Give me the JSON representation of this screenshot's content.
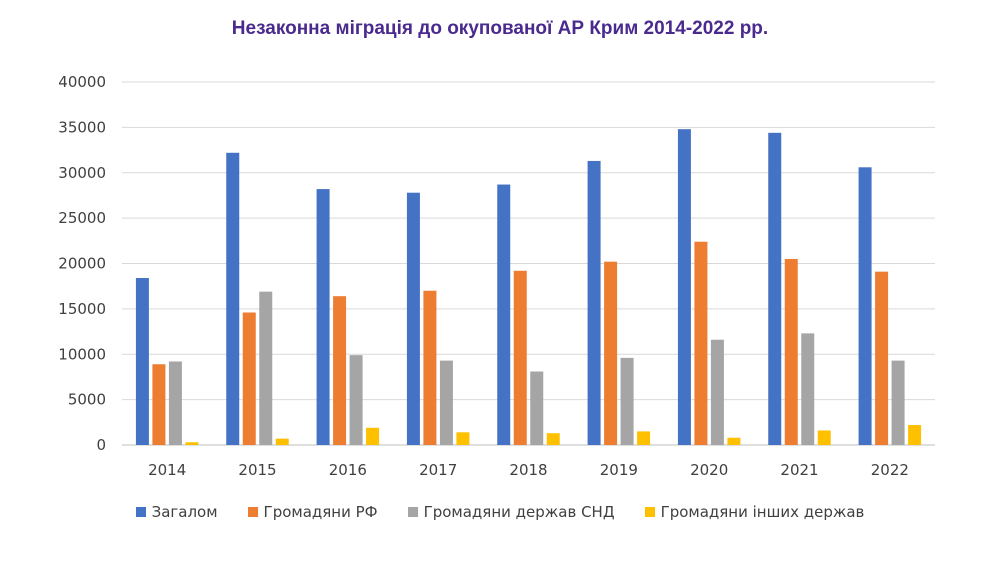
{
  "chart_data": {
    "type": "bar",
    "title": "Незаконна міграція до окупованої АР Крим 2014-2022 рр.",
    "categories": [
      "2014",
      "2015",
      "2016",
      "2017",
      "2018",
      "2019",
      "2020",
      "2021",
      "2022"
    ],
    "ylim": [
      0,
      40000
    ],
    "yticks": [
      "0",
      "5000",
      "10000",
      "15000",
      "20000",
      "25000",
      "30000",
      "35000",
      "40000"
    ],
    "grid": true,
    "legend_position": "bottom",
    "series": [
      {
        "name": "Загалом",
        "color": "#4472c4",
        "values": [
          18400,
          32200,
          28200,
          27800,
          28700,
          31300,
          34800,
          34400,
          30600
        ]
      },
      {
        "name": "Громадяни РФ",
        "color": "#ed7d31",
        "values": [
          8900,
          14600,
          16400,
          17000,
          19200,
          20200,
          22400,
          20500,
          19100
        ]
      },
      {
        "name": "Громадяни держав СНД",
        "color": "#a5a5a5",
        "values": [
          9200,
          16900,
          9900,
          9300,
          8100,
          9600,
          11600,
          12300,
          9300
        ]
      },
      {
        "name": "Громадяни інших держав",
        "color": "#ffc000",
        "values": [
          300,
          700,
          1900,
          1400,
          1300,
          1500,
          800,
          1600,
          2200
        ]
      }
    ]
  }
}
